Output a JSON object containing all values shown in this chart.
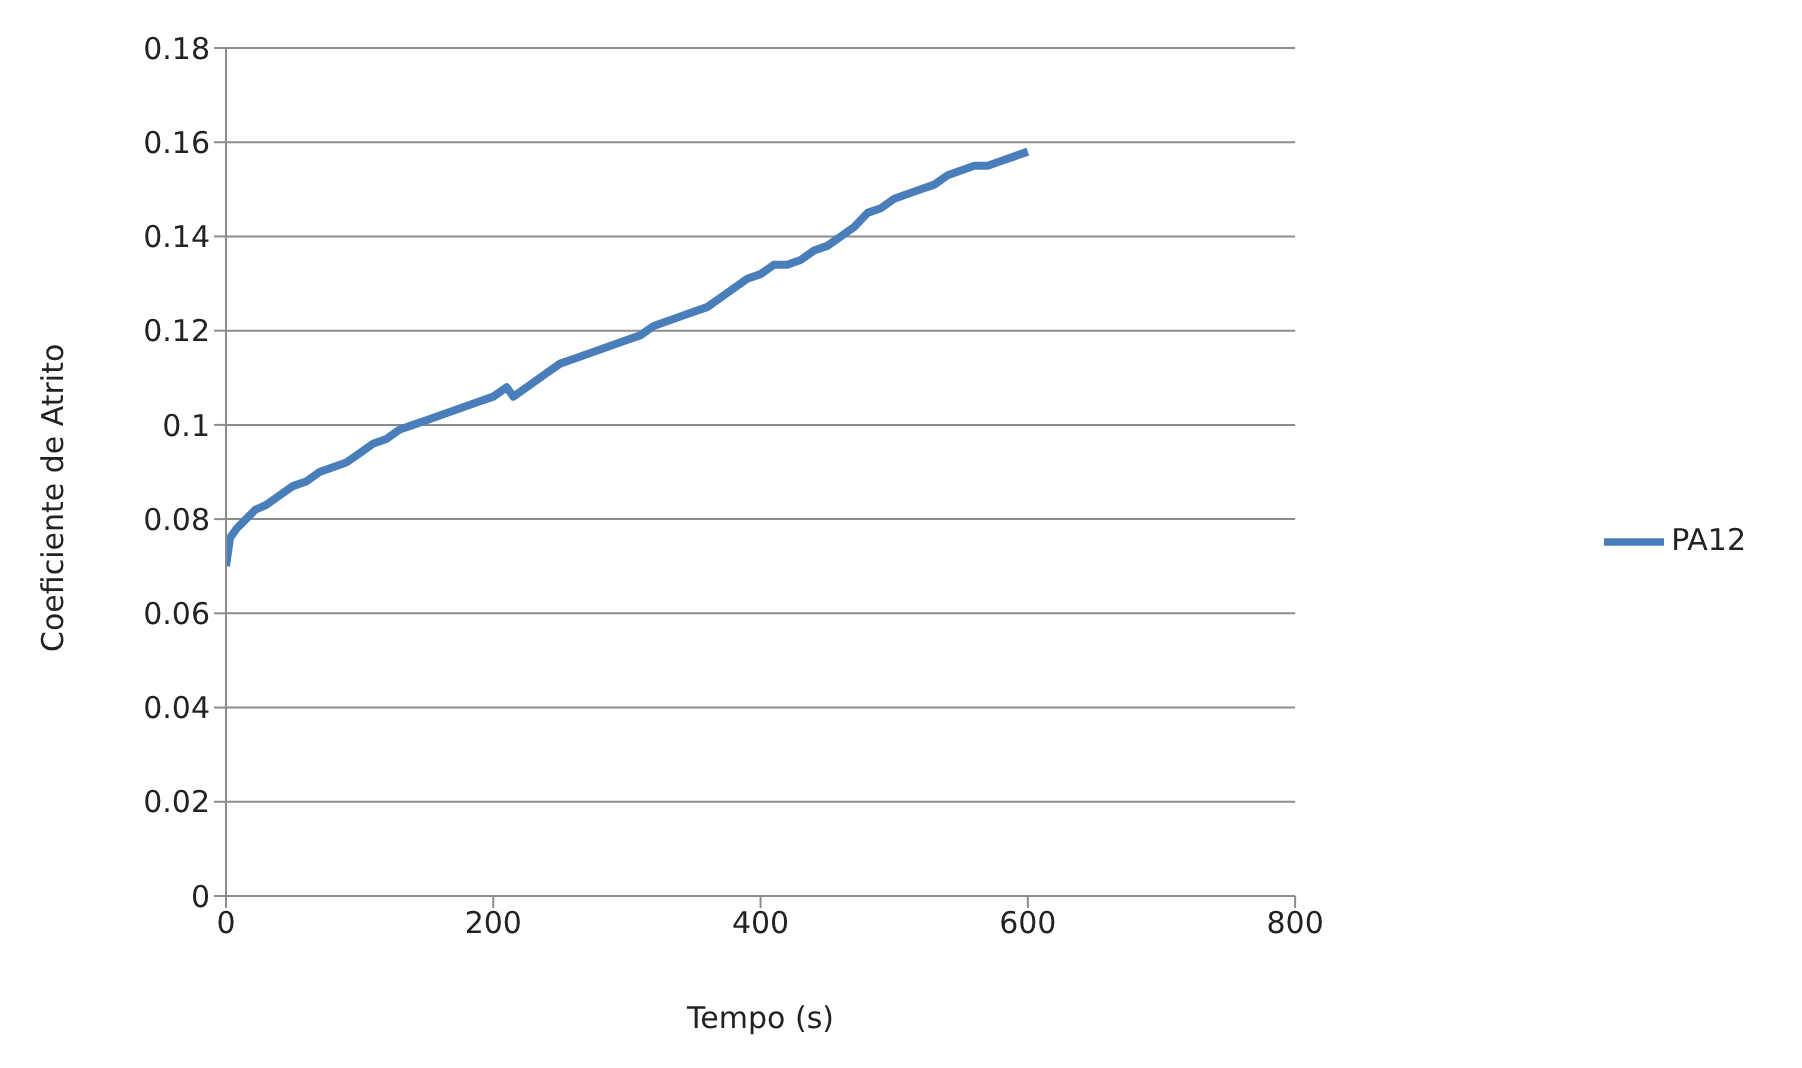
{
  "chart_data": {
    "type": "line",
    "xlabel": "Tempo (s)",
    "ylabel": "Coeficiente de Atrito",
    "xlim": [
      0,
      800
    ],
    "xticks": [
      0,
      200,
      400,
      600,
      800
    ],
    "ylim": [
      0,
      0.18
    ],
    "yticks": [
      0,
      0.02,
      0.04,
      0.06,
      0.08,
      0.1,
      0.12,
      0.14,
      0.16,
      0.18
    ],
    "grid": "y",
    "legend": "right",
    "marker": "none",
    "line_style": "solid",
    "series": [
      {
        "name": "PA12",
        "color": "#4a7ebb",
        "x": [
          0,
          3,
          8,
          15,
          22,
          30,
          40,
          50,
          60,
          70,
          80,
          90,
          100,
          110,
          120,
          130,
          140,
          150,
          160,
          170,
          180,
          190,
          200,
          210,
          215,
          220,
          230,
          240,
          250,
          260,
          270,
          280,
          290,
          300,
          310,
          320,
          330,
          340,
          350,
          360,
          370,
          380,
          390,
          400,
          410,
          420,
          430,
          440,
          450,
          460,
          470,
          480,
          490,
          500,
          510,
          520,
          530,
          540,
          550,
          560,
          570,
          580,
          590,
          600
        ],
        "values": [
          0.07,
          0.076,
          0.078,
          0.08,
          0.082,
          0.083,
          0.085,
          0.087,
          0.088,
          0.09,
          0.091,
          0.092,
          0.094,
          0.096,
          0.097,
          0.099,
          0.1,
          0.101,
          0.102,
          0.103,
          0.104,
          0.105,
          0.106,
          0.108,
          0.106,
          0.107,
          0.109,
          0.111,
          0.113,
          0.114,
          0.115,
          0.116,
          0.117,
          0.118,
          0.119,
          0.121,
          0.122,
          0.123,
          0.124,
          0.125,
          0.127,
          0.129,
          0.131,
          0.132,
          0.134,
          0.134,
          0.135,
          0.137,
          0.138,
          0.14,
          0.142,
          0.145,
          0.146,
          0.148,
          0.149,
          0.15,
          0.151,
          0.153,
          0.154,
          0.155,
          0.155,
          0.156,
          0.157,
          0.158
        ]
      }
    ]
  }
}
